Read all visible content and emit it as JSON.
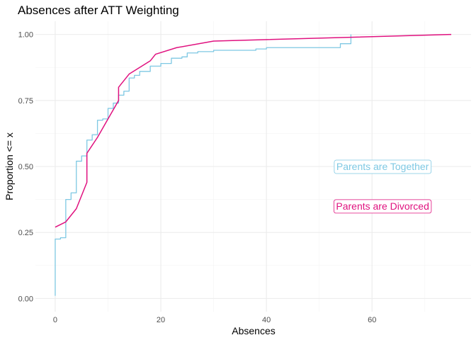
{
  "chart_data": {
    "type": "line",
    "title": "Absences after ATT Weighting",
    "xlabel": "Absences",
    "ylabel": "Proportion <= x",
    "xlim": [
      -3.75,
      78.75
    ],
    "ylim": [
      -0.05,
      1.05
    ],
    "x_ticks": [
      0,
      20,
      40,
      60
    ],
    "x_tick_labels": [
      "0",
      "20",
      "40",
      "60"
    ],
    "y_ticks": [
      0,
      0.25,
      0.5,
      0.75,
      1.0
    ],
    "y_tick_labels": [
      "0.00",
      "0.25",
      "0.50",
      "0.75",
      "1.00"
    ],
    "x_minor": [
      10,
      30,
      50,
      70
    ],
    "y_minor": [
      0.125,
      0.375,
      0.625,
      0.875
    ],
    "grid": true,
    "legend": "none",
    "series": [
      {
        "name": "Parents are Together",
        "color": "#7ec8e3",
        "step": true,
        "x": [
          0,
          0,
          1,
          2,
          3,
          4,
          5,
          6,
          7,
          8,
          9,
          10,
          11,
          12,
          13,
          14,
          15,
          16,
          18,
          20,
          22,
          24,
          25,
          27,
          30,
          38,
          40,
          54,
          56
        ],
        "y": [
          0.01,
          0.225,
          0.23,
          0.375,
          0.4,
          0.52,
          0.54,
          0.6,
          0.62,
          0.675,
          0.68,
          0.72,
          0.74,
          0.77,
          0.785,
          0.835,
          0.845,
          0.86,
          0.88,
          0.89,
          0.91,
          0.915,
          0.93,
          0.935,
          0.94,
          0.945,
          0.95,
          0.965,
          1.0
        ]
      },
      {
        "name": "Parents are Divorced",
        "color": "#e0117f",
        "step": false,
        "x": [
          0,
          2,
          4,
          6,
          6,
          8,
          10,
          12,
          12,
          14,
          18,
          19,
          23,
          30,
          75
        ],
        "y": [
          0.27,
          0.29,
          0.34,
          0.44,
          0.55,
          0.61,
          0.68,
          0.75,
          0.8,
          0.85,
          0.9,
          0.925,
          0.95,
          0.975,
          1.0
        ]
      }
    ],
    "annotations": [
      {
        "text": "Parents are Together",
        "x": 62,
        "y": 0.5,
        "color": "#7ec8e3"
      },
      {
        "text": "Parents are Divorced",
        "x": 62,
        "y": 0.35,
        "color": "#e0117f"
      }
    ]
  }
}
